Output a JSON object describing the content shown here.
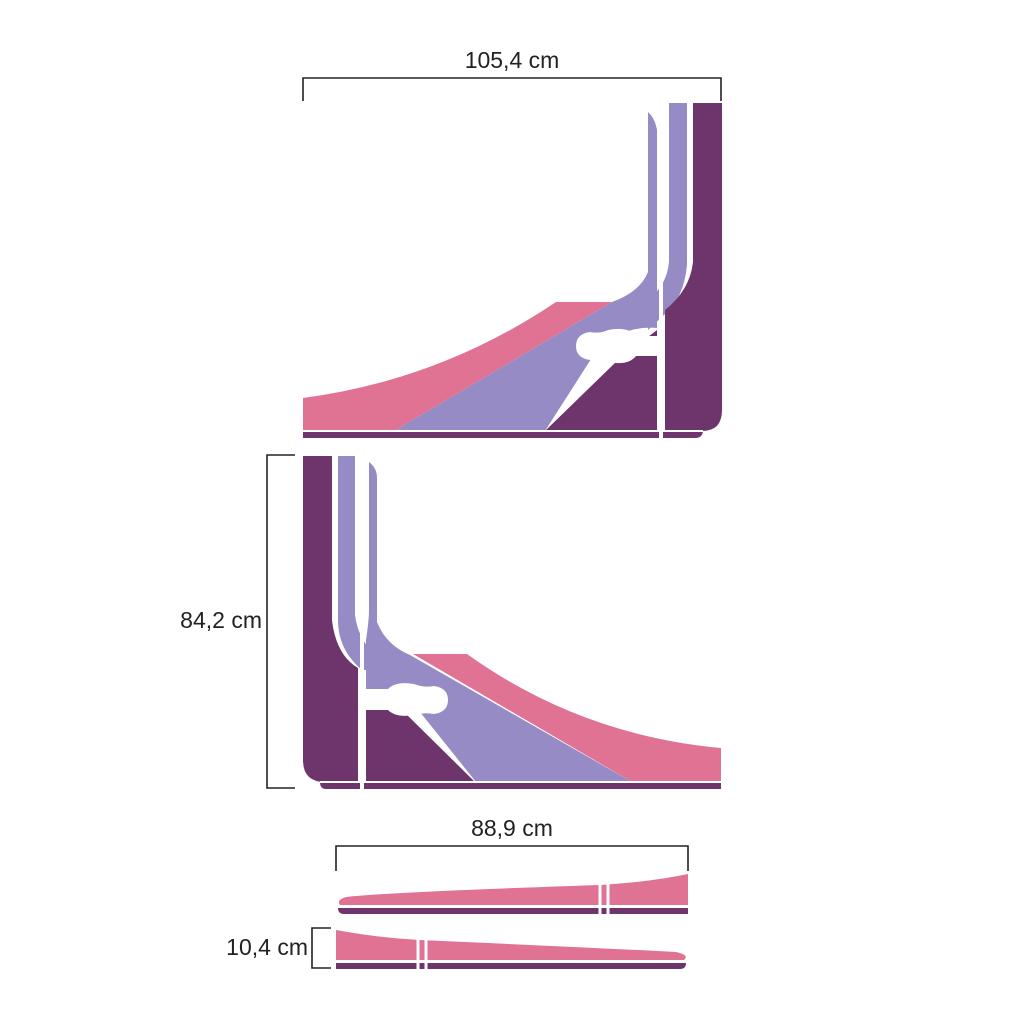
{
  "dimensions": {
    "top_width": "105,4 cm",
    "middle_height": "84,2 cm",
    "bottom_width": "88,9 cm",
    "bottom_height": "10,4 cm"
  },
  "colors": {
    "pink": "#E07393",
    "lavender": "#968BC4",
    "plum": "#6E356C",
    "line": "#222222",
    "background": "#FFFFFF"
  }
}
